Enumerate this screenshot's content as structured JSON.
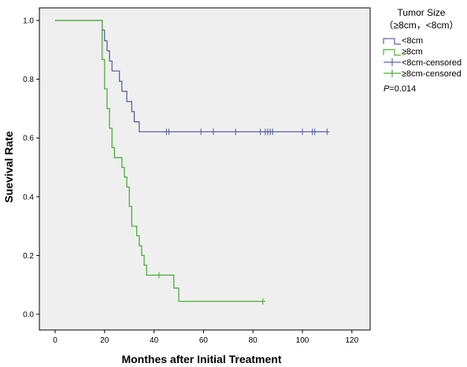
{
  "chart_data": {
    "type": "line",
    "xlabel": "Monthes after Initial Treatment",
    "ylabel": "Suevival Rate",
    "xlim": [
      0,
      120
    ],
    "ylim": [
      0,
      1.0
    ],
    "x_ticks": [
      "0",
      "20",
      "40",
      "60",
      "80",
      "100",
      "120"
    ],
    "y_ticks": [
      "0.0",
      "0.2",
      "0.4",
      "0.6",
      "0.8",
      "1.0"
    ],
    "grid": false,
    "legend_placement": "right",
    "legend": {
      "title_line1": "Tumor Size",
      "title_line2": "（≥8cm，<8cm）",
      "entries": [
        "<8cm",
        "≥8cm",
        "<8cm-censored",
        "≥8cm-censored"
      ],
      "p_prefix": "P",
      "p_value": "=0.014"
    },
    "series": [
      {
        "name": "<8cm",
        "color": "#5b63a8",
        "steps": [
          [
            0,
            1.0
          ],
          [
            19,
            1.0
          ],
          [
            19,
            0.967
          ],
          [
            20,
            0.967
          ],
          [
            20,
            0.931
          ],
          [
            21,
            0.931
          ],
          [
            21,
            0.897
          ],
          [
            22,
            0.897
          ],
          [
            22,
            0.862
          ],
          [
            23,
            0.862
          ],
          [
            23,
            0.828
          ],
          [
            26,
            0.828
          ],
          [
            26,
            0.793
          ],
          [
            27,
            0.793
          ],
          [
            27,
            0.759
          ],
          [
            29,
            0.759
          ],
          [
            29,
            0.724
          ],
          [
            31,
            0.724
          ],
          [
            31,
            0.69
          ],
          [
            32,
            0.69
          ],
          [
            32,
            0.655
          ],
          [
            34,
            0.655
          ],
          [
            34,
            0.621
          ],
          [
            110,
            0.621
          ]
        ],
        "censored": [
          45,
          46,
          59,
          64,
          73,
          83,
          85,
          86,
          87,
          88,
          100,
          104,
          105,
          110
        ]
      },
      {
        "name": "≥8cm",
        "color": "#4caf3a",
        "steps": [
          [
            0,
            1.0
          ],
          [
            19,
            1.0
          ],
          [
            19,
            0.867
          ],
          [
            20,
            0.867
          ],
          [
            20,
            0.767
          ],
          [
            21,
            0.767
          ],
          [
            21,
            0.7
          ],
          [
            22,
            0.7
          ],
          [
            22,
            0.633
          ],
          [
            23,
            0.633
          ],
          [
            23,
            0.567
          ],
          [
            24,
            0.567
          ],
          [
            24,
            0.533
          ],
          [
            27,
            0.533
          ],
          [
            27,
            0.5
          ],
          [
            28,
            0.5
          ],
          [
            28,
            0.467
          ],
          [
            29,
            0.467
          ],
          [
            29,
            0.433
          ],
          [
            30,
            0.433
          ],
          [
            30,
            0.367
          ],
          [
            31,
            0.367
          ],
          [
            31,
            0.3
          ],
          [
            33,
            0.3
          ],
          [
            33,
            0.267
          ],
          [
            34,
            0.267
          ],
          [
            34,
            0.233
          ],
          [
            35,
            0.233
          ],
          [
            35,
            0.2
          ],
          [
            36,
            0.2
          ],
          [
            36,
            0.167
          ],
          [
            37,
            0.167
          ],
          [
            37,
            0.133
          ],
          [
            48,
            0.133
          ],
          [
            48,
            0.089
          ],
          [
            50,
            0.089
          ],
          [
            50,
            0.044
          ],
          [
            84,
            0.044
          ]
        ],
        "censored": [
          42,
          84
        ]
      }
    ],
    "colors": {
      "plot_background": "#efefef",
      "axis": "#000000",
      "censored_lt8": "#5b63a8",
      "censored_ge8": "#4caf3a"
    }
  }
}
